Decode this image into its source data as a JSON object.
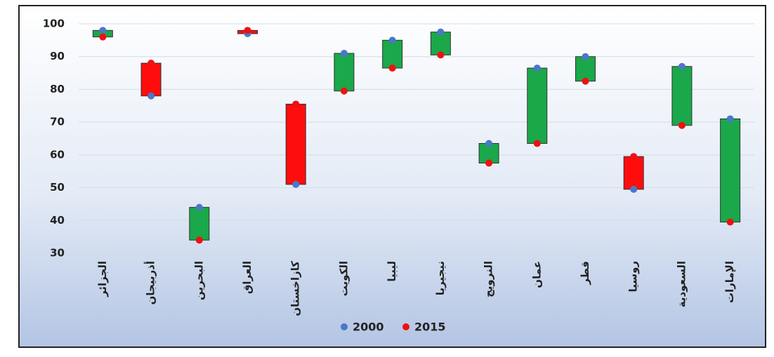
{
  "chart_data": {
    "type": "range",
    "categories": [
      "الجزائر",
      "أذربيجان",
      "البحرين",
      "العراق",
      "كازاخستان",
      "الكويت",
      "ليبيا",
      "نيجيريا",
      "النرويج",
      "عمان",
      "قطر",
      "روسيا",
      "السعودية",
      "الإمارات"
    ],
    "series": [
      {
        "name": "2000",
        "color": "#4a78c8",
        "values": [
          98,
          78,
          44,
          97,
          51,
          91,
          95,
          97.5,
          63.5,
          86.5,
          90,
          49.5,
          87,
          71
        ]
      },
      {
        "name": "2015",
        "color": "#ee1111",
        "values": [
          96,
          88,
          34,
          98,
          75.5,
          79.5,
          86.5,
          90.5,
          57.5,
          63.5,
          82.5,
          59.5,
          69,
          39.5
        ]
      }
    ],
    "increase_color": "#ff0d0d",
    "decrease_color": "#1aa84a",
    "ylim": [
      30,
      100
    ],
    "yticks": [
      30,
      40,
      50,
      60,
      70,
      80,
      90,
      100
    ],
    "grid": true,
    "legend": "bottom"
  }
}
